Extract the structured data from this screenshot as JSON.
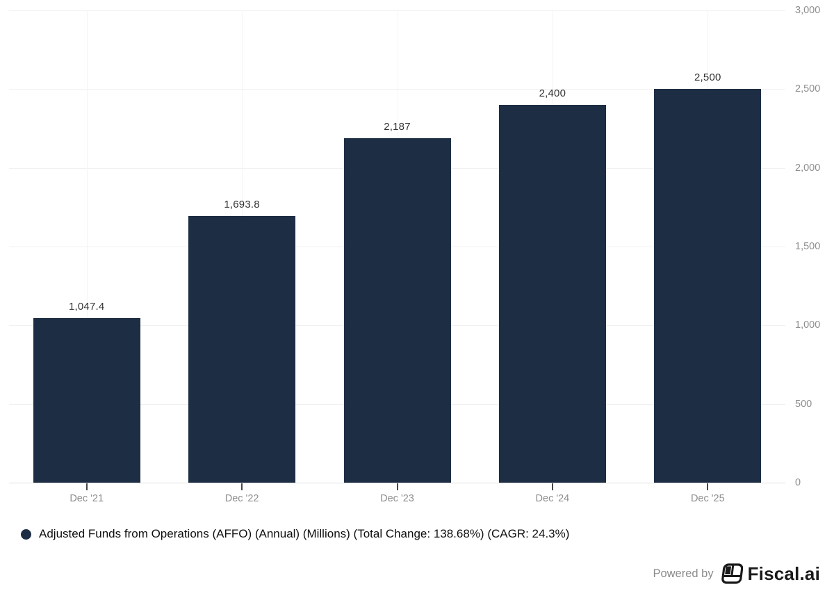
{
  "chart_data": {
    "type": "bar",
    "title": "",
    "categories": [
      "Dec '21",
      "Dec '22",
      "Dec '23",
      "Dec '24",
      "Dec '25"
    ],
    "values": [
      1047.4,
      1693.8,
      2187,
      2400,
      2500
    ],
    "value_labels": [
      "1,047.4",
      "1,693.8",
      "2,187",
      "2,400",
      "2,500"
    ],
    "series_name": "Adjusted Funds from Operations (AFFO) (Annual) (Millions) (Total Change: 138.68%) (CAGR: 24.3%)",
    "xlabel": "",
    "ylabel": "",
    "ylim": [
      0,
      3000
    ],
    "y_ticks": [
      0,
      500,
      1000,
      1500,
      2000,
      2500,
      3000
    ],
    "y_tick_labels": [
      "0",
      "500",
      "1,000",
      "1,500",
      "2,000",
      "2,500",
      "3,000"
    ],
    "y_axis_side": "right",
    "grid": true,
    "bar_color": "#1d2e44",
    "legend_position": "bottom-left"
  },
  "legend": {
    "label": "Adjusted Funds from Operations (AFFO) (Annual) (Millions) (Total Change: 138.68%) (CAGR: 24.3%)",
    "marker_color": "#1d2e44"
  },
  "footer": {
    "powered_by": "Powered by",
    "brand": "Fiscal.ai"
  }
}
